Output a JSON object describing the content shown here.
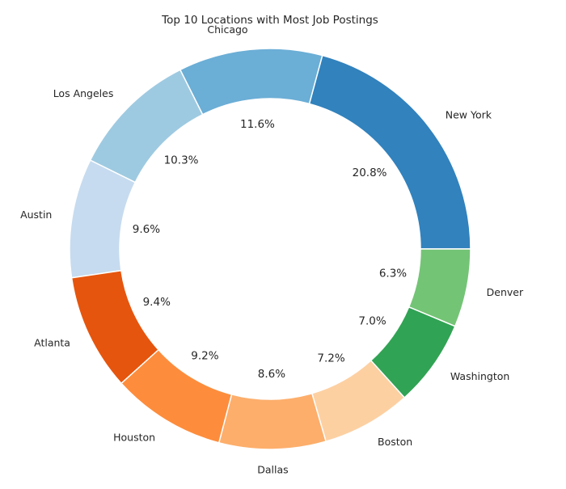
{
  "chart_data": {
    "type": "pie",
    "variant": "donut",
    "title": "Top 10 Locations with Most Job Postings",
    "categories": [
      "New York",
      "Chicago",
      "Los Angeles",
      "Austin",
      "Atlanta",
      "Houston",
      "Dallas",
      "Boston",
      "Washington",
      "Denver"
    ],
    "values": [
      20.8,
      11.6,
      10.3,
      9.6,
      9.4,
      9.2,
      8.6,
      7.2,
      7.0,
      6.3
    ],
    "value_labels": [
      "20.8%",
      "11.6%",
      "10.3%",
      "9.6%",
      "9.4%",
      "9.2%",
      "8.6%",
      "7.2%",
      "7.0%",
      "6.3%"
    ],
    "colors": [
      "#3182bd",
      "#6baed6",
      "#9ecae1",
      "#c6dbef",
      "#e6550d",
      "#fd8d3c",
      "#fdae6b",
      "#fdd0a2",
      "#31a354",
      "#74c476"
    ],
    "start": "east",
    "direction": "counterclockwise"
  }
}
